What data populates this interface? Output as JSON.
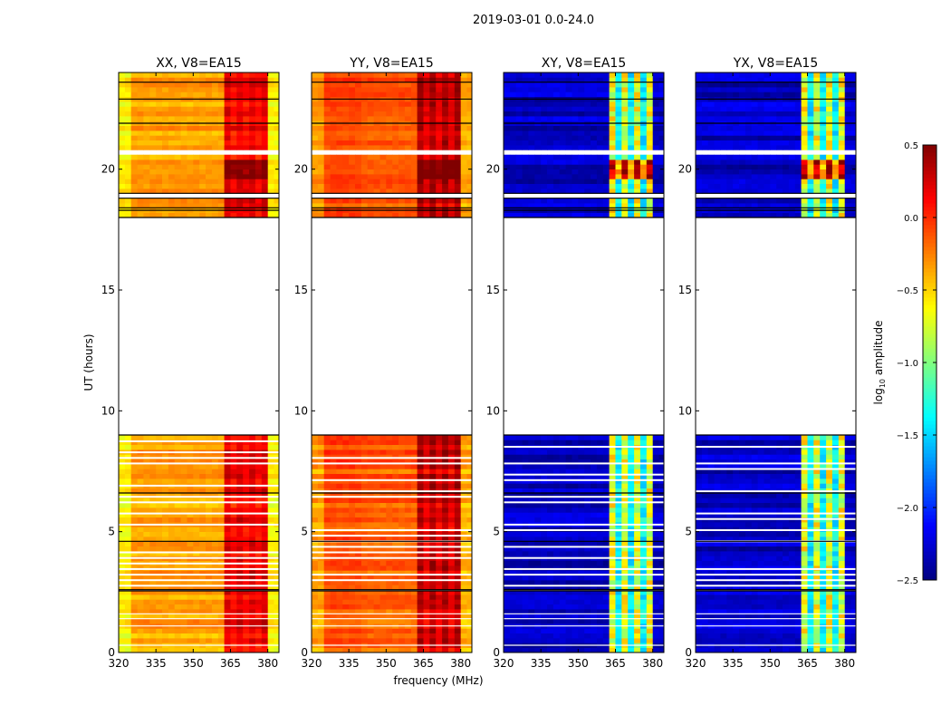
{
  "chart_data": {
    "type": "heatmap",
    "suptitle": "2019-03-01 0.0-24.0",
    "xlabel": "frequency (MHz)",
    "ylabel": "UT (hours)",
    "xlim": [
      320,
      384.5
    ],
    "ylim": [
      0,
      24
    ],
    "xticks": [
      "320",
      "335",
      "350",
      "365",
      "380"
    ],
    "xtick_values": [
      320,
      335,
      350,
      365,
      380
    ],
    "yticks": [
      "0",
      "5",
      "10",
      "15",
      "20"
    ],
    "ytick_values": [
      0,
      5,
      10,
      15,
      20
    ],
    "data_segments_hours": [
      [
        0,
        2.55
      ],
      [
        2.6,
        9.0
      ],
      [
        18.0,
        18.8
      ],
      [
        19.0,
        20.6
      ],
      [
        20.8,
        24.0
      ]
    ],
    "flagged_rows_hours": [
      0.3,
      1.1,
      1.4,
      1.6,
      4.6,
      6.6,
      18.3,
      18.4,
      21.9,
      22.9,
      23.6
    ],
    "rfi_band_mhz": [
      363,
      380
    ],
    "panels": [
      {
        "title": "XX, V8=EA15",
        "base_log_amp": -0.35,
        "rfi_log_amp": 0.2
      },
      {
        "title": "YY, V8=EA15",
        "base_log_amp": -0.15,
        "rfi_log_amp": 0.35
      },
      {
        "title": "XY, V8=EA15",
        "base_log_amp": -2.3,
        "rfi_log_amp": -0.8
      },
      {
        "title": "YX, V8=EA15",
        "base_log_amp": -2.3,
        "rfi_log_amp": -0.8
      }
    ],
    "colorbar": {
      "label": "log10 amplitude",
      "label_main": "log",
      "label_sub": "10",
      "label_rest": " amplitude",
      "range": [
        -2.5,
        0.5
      ],
      "colormap": "jet",
      "ticks": [
        "0.5",
        "0.0",
        "−0.5",
        "−1.0",
        "−1.5",
        "−2.0",
        "−2.5"
      ],
      "tick_values": [
        0.5,
        0.0,
        -0.5,
        -1.0,
        -1.5,
        -2.0,
        -2.5
      ]
    }
  }
}
